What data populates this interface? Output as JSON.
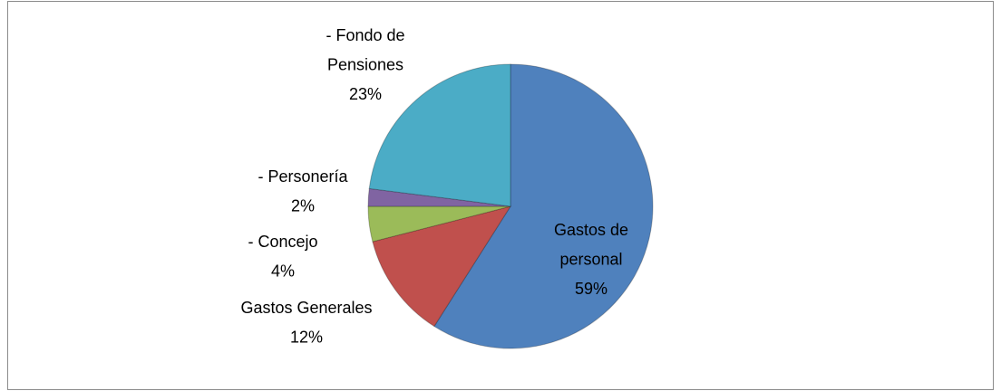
{
  "chart_data": {
    "type": "pie",
    "categories": [
      "Gastos de personal",
      "Gastos Generales",
      "- Concejo",
      "- Personería",
      "- Fondo de Pensiones"
    ],
    "values": [
      59,
      12,
      4,
      2,
      23
    ],
    "value_labels": [
      "59%",
      "12%",
      "4%",
      "2%",
      "23%"
    ],
    "colors": [
      "#4f81bd",
      "#c0504d",
      "#9bbb59",
      "#8064a2",
      "#4bacc6"
    ]
  }
}
